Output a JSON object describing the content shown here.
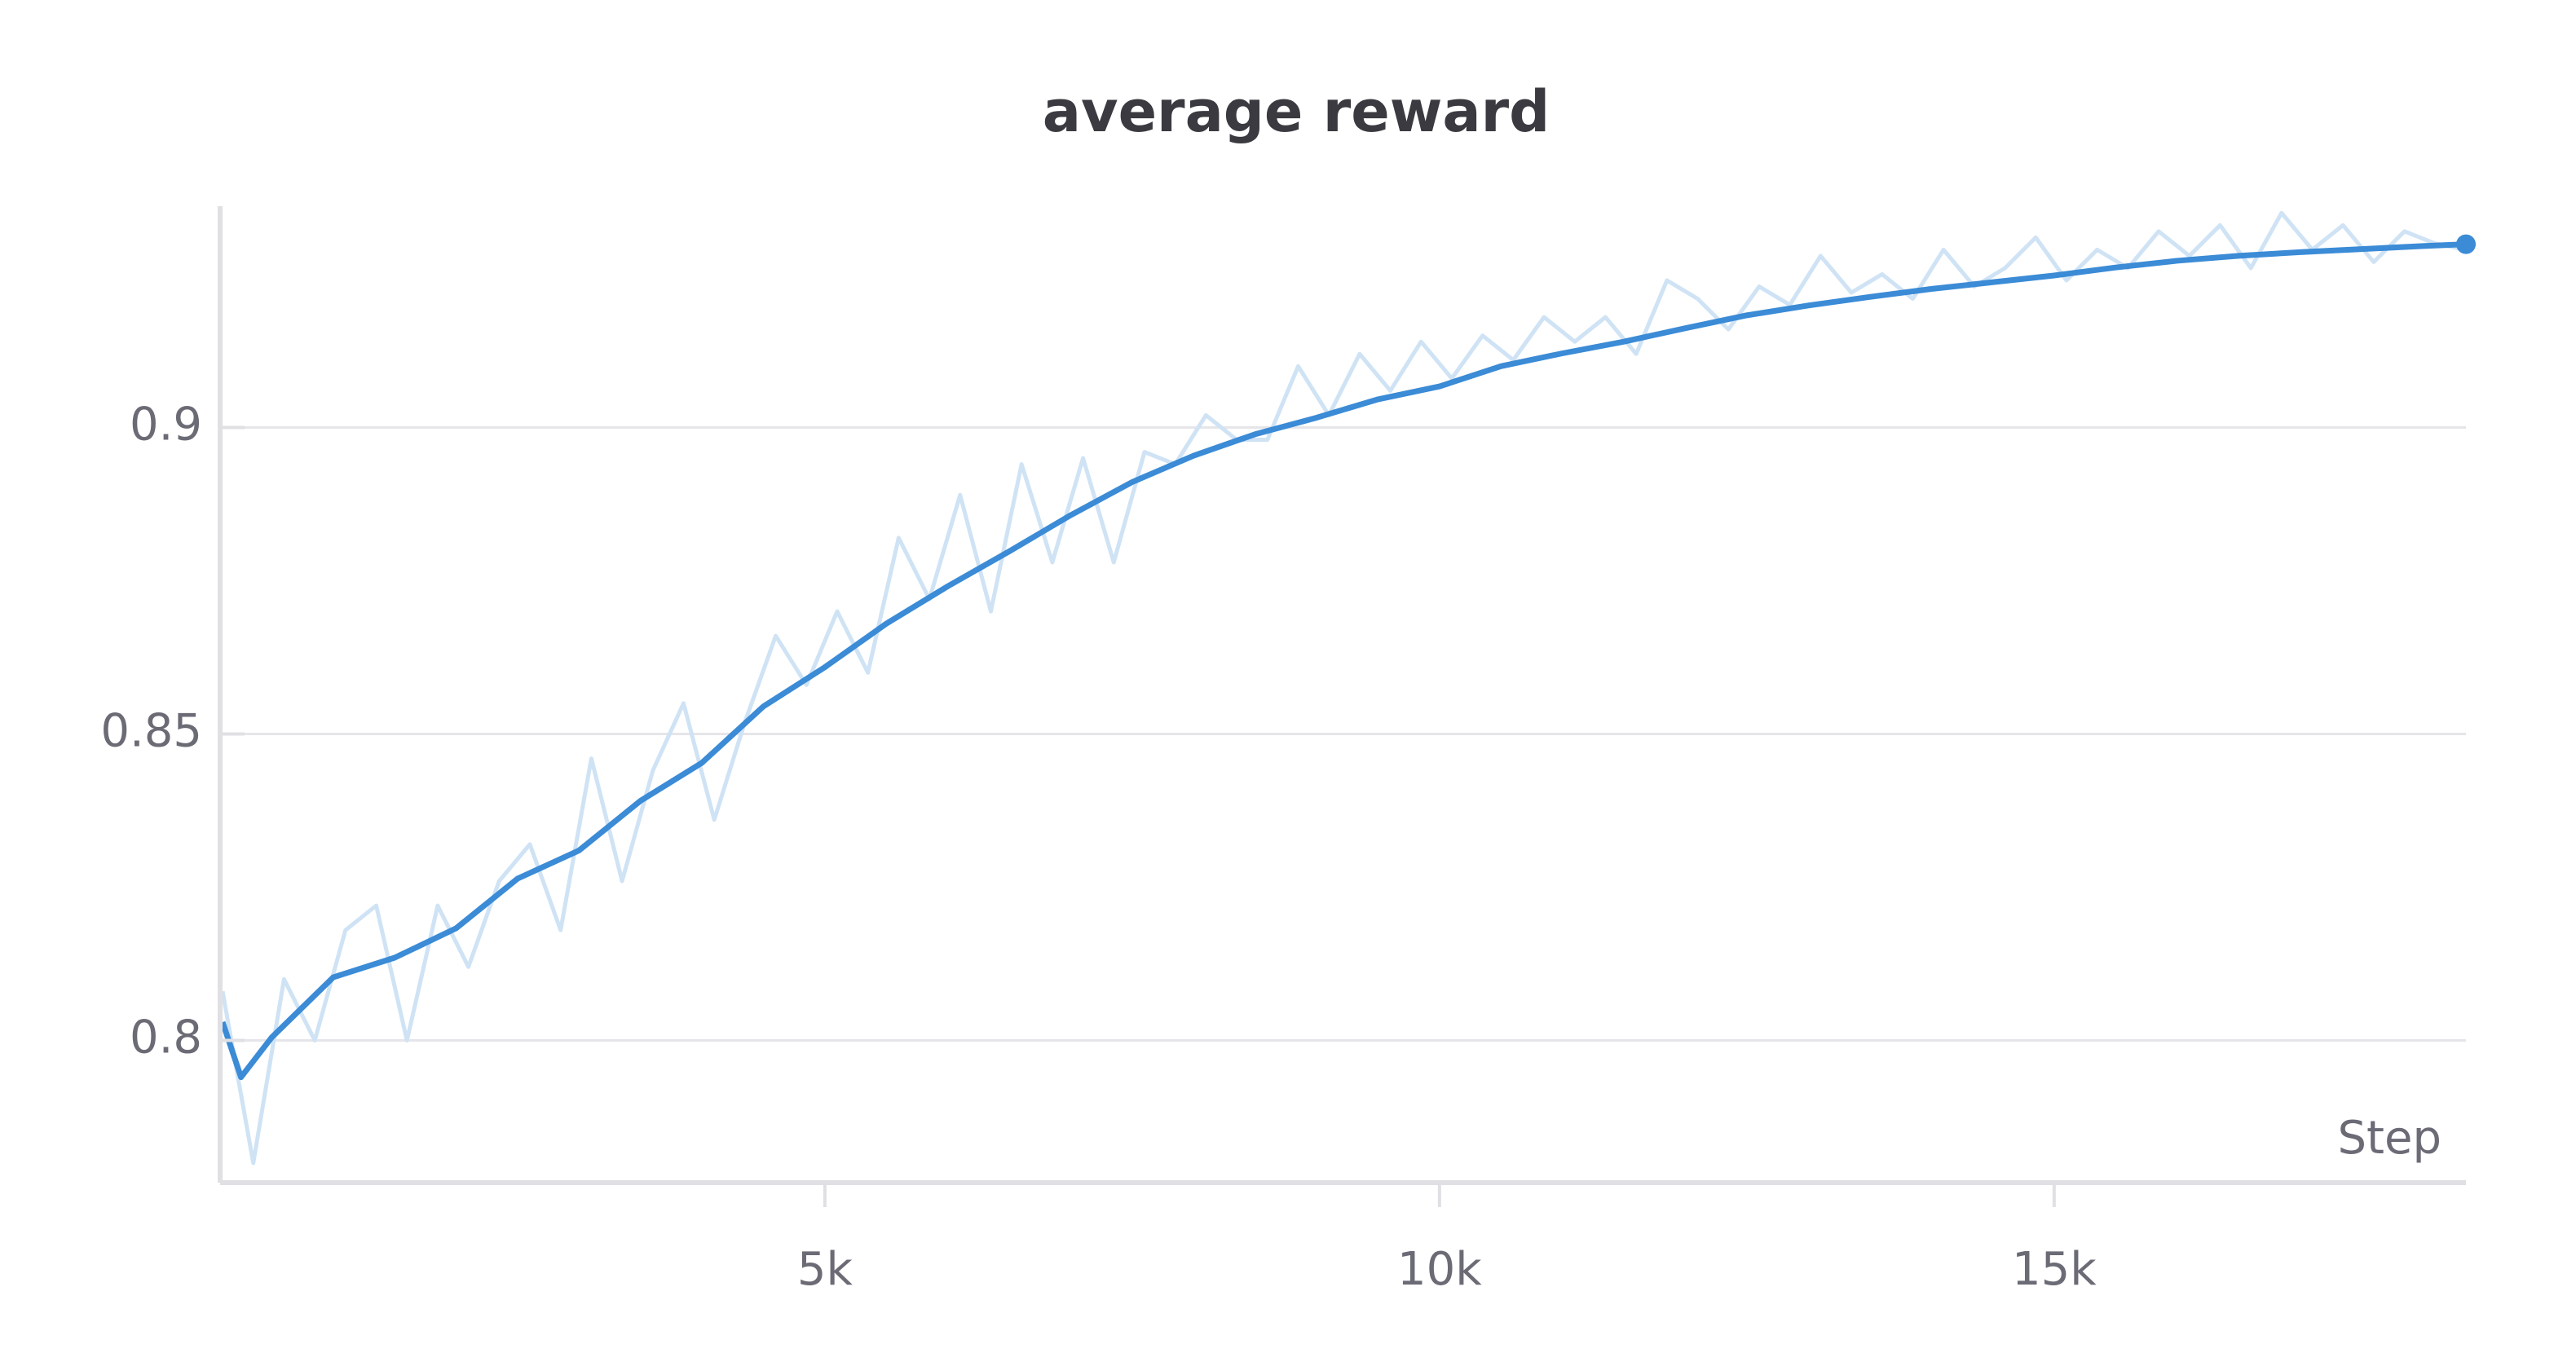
{
  "chart_data": {
    "type": "line",
    "title": "average reward",
    "x_label": "Step",
    "xlim": [
      80,
      18350
    ],
    "ylim": [
      0.7768,
      0.9361
    ],
    "xticks": [
      {
        "value": 5000,
        "label": "5k"
      },
      {
        "value": 10000,
        "label": "10k"
      },
      {
        "value": 15000,
        "label": "15k"
      }
    ],
    "yticks": [
      0.8,
      0.85,
      0.9
    ],
    "grid": true,
    "series": [
      {
        "role": "raw",
        "color": "#cfe3f5",
        "x": [
          100,
          350,
          600,
          850,
          1100,
          1350,
          1600,
          1850,
          2100,
          2350,
          2600,
          2850,
          3100,
          3350,
          3600,
          3850,
          4100,
          4350,
          4600,
          4850,
          5100,
          5350,
          5600,
          5850,
          6100,
          6350,
          6600,
          6850,
          7100,
          7350,
          7600,
          7850,
          8100,
          8350,
          8600,
          8850,
          9100,
          9350,
          9600,
          9850,
          10100,
          10350,
          10600,
          10850,
          11100,
          11350,
          11600,
          11850,
          12100,
          12350,
          12600,
          12850,
          13100,
          13350,
          13600,
          13850,
          14100,
          14350,
          14600,
          14850,
          15100,
          15350,
          15600,
          15850,
          16100,
          16350,
          16600,
          16850,
          17100,
          17350,
          17600,
          17850,
          18100,
          18350
        ],
        "values": [
          0.808,
          0.78,
          0.81,
          0.8,
          0.818,
          0.822,
          0.8,
          0.822,
          0.812,
          0.826,
          0.832,
          0.818,
          0.846,
          0.826,
          0.844,
          0.855,
          0.836,
          0.852,
          0.866,
          0.858,
          0.87,
          0.86,
          0.882,
          0.872,
          0.889,
          0.87,
          0.894,
          0.878,
          0.895,
          0.878,
          0.896,
          0.894,
          0.902,
          0.898,
          0.898,
          0.91,
          0.902,
          0.912,
          0.906,
          0.914,
          0.908,
          0.915,
          0.911,
          0.918,
          0.914,
          0.918,
          0.912,
          0.924,
          0.921,
          0.916,
          0.923,
          0.92,
          0.928,
          0.922,
          0.925,
          0.921,
          0.929,
          0.923,
          0.926,
          0.931,
          0.924,
          0.929,
          0.926,
          0.932,
          0.928,
          0.933,
          0.926,
          0.935,
          0.929,
          0.933,
          0.927,
          0.932,
          0.93,
          0.929
        ]
      },
      {
        "role": "smoothed",
        "color": "#3b8bd6",
        "x": [
          100,
          250,
          500,
          1000,
          1500,
          2000,
          2500,
          3000,
          3500,
          4000,
          4500,
          5000,
          5500,
          6000,
          6500,
          7000,
          7500,
          8000,
          8500,
          9000,
          9500,
          10000,
          10500,
          11000,
          11500,
          12000,
          12500,
          13000,
          13500,
          14000,
          14500,
          15000,
          15500,
          16000,
          16500,
          17000,
          17500,
          18000,
          18350
        ],
        "values": [
          0.803,
          0.794,
          0.8005,
          0.8103,
          0.8135,
          0.8183,
          0.8264,
          0.831,
          0.8391,
          0.8453,
          0.8545,
          0.8609,
          0.868,
          0.8741,
          0.8798,
          0.8857,
          0.8911,
          0.8954,
          0.8989,
          0.9016,
          0.9046,
          0.9067,
          0.91,
          0.9121,
          0.914,
          0.9162,
          0.9183,
          0.9199,
          0.9213,
          0.9226,
          0.9237,
          0.9248,
          0.9261,
          0.9272,
          0.928,
          0.9286,
          0.9291,
          0.9296,
          0.9299
        ]
      }
    ]
  }
}
